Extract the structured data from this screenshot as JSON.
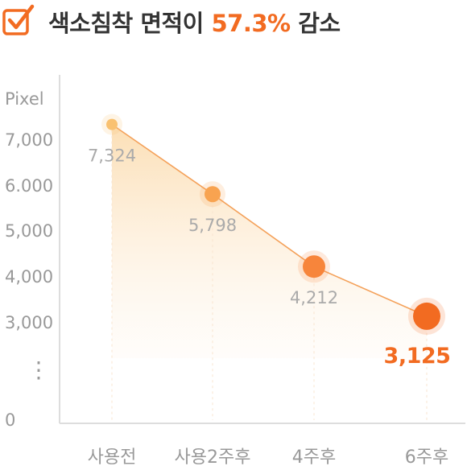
{
  "header": {
    "title_prefix": "색소침착 면적이",
    "title_highlight": "57.3%",
    "title_suffix": "감소",
    "icon": "checkbox-check-icon"
  },
  "colors": {
    "accent": "#f26b21",
    "line": "#f4a15a",
    "axis": "#dddddd",
    "text_gray": "#999999"
  },
  "chart_data": {
    "type": "line",
    "y_unit_label": "Pixel",
    "categories": [
      "사용전",
      "사용2주후",
      "4주후",
      "6주후"
    ],
    "values": [
      7324,
      5798,
      4212,
      3125
    ],
    "value_labels": [
      "7,324",
      "5,798",
      "4,212",
      "3,125"
    ],
    "y_tick_labels": [
      "7,000",
      "6.000",
      "5,000",
      "4,000",
      "3,000",
      "⋮",
      "0"
    ],
    "y_axis_broken": true,
    "highlight_last": true,
    "grid": false
  }
}
